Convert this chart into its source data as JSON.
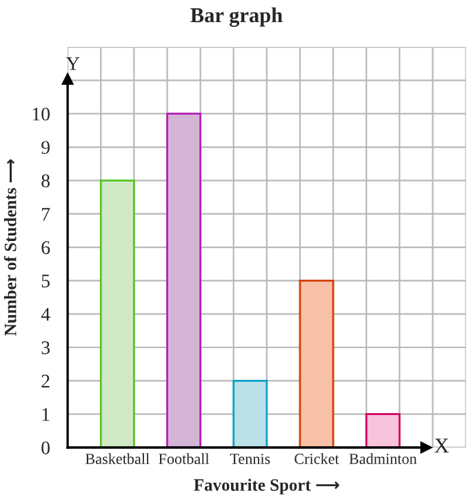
{
  "chart_data": {
    "type": "bar",
    "title": "Bar graph",
    "xlabel": "Favourite Sport ⟶",
    "ylabel": "Number of Students ⟶",
    "categories": [
      "Basketball",
      "Football",
      "Tennis",
      "Cricket",
      "Badminton"
    ],
    "values": [
      8,
      10,
      2,
      5,
      1
    ],
    "colors": [
      "#d0e8c4",
      "#d4b4d4",
      "#bce0e8",
      "#f8c0a8",
      "#f8c4dc"
    ],
    "ylim": [
      0,
      12
    ],
    "yticks": [
      0,
      1,
      2,
      3,
      4,
      5,
      6,
      7,
      8,
      9,
      10
    ],
    "grid": true,
    "annotations": [
      "Y",
      "X"
    ]
  }
}
